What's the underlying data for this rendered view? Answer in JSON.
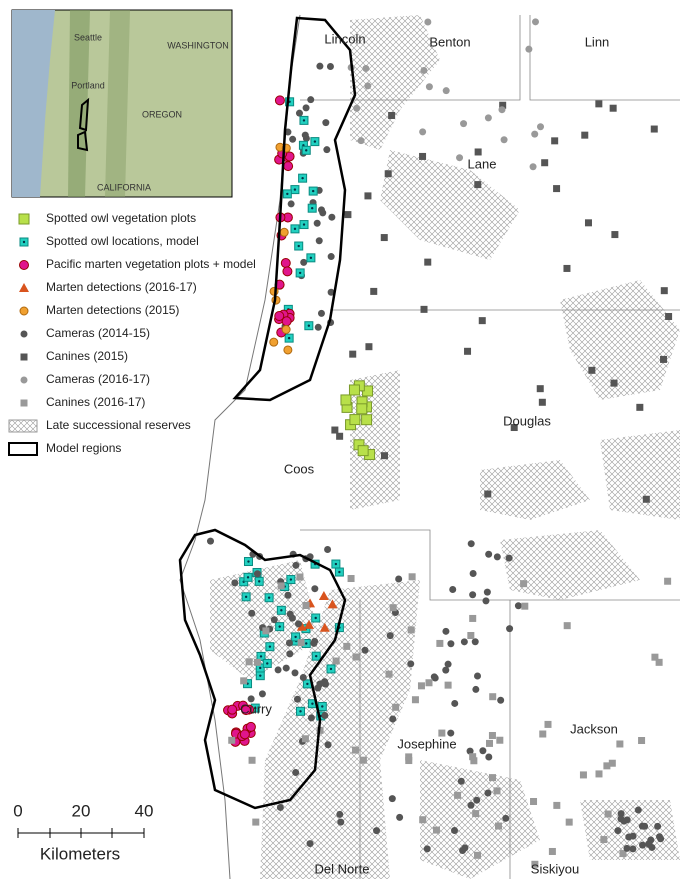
{
  "inset": {
    "labels": [
      "Seattle",
      "WASHINGTON",
      "Portland",
      "OREGON",
      "CALIFORNIA"
    ]
  },
  "legend": {
    "items": [
      "Spotted owl vegetation plots",
      "Spotted owl locations, model",
      "Pacific marten vegetation plots + model",
      "Marten detections (2016-17)",
      "Marten detections (2015)",
      "Cameras (2014-15)",
      "Canines (2015)",
      "Cameras (2016-17)",
      "Canines (2016-17)",
      "Late successional reserves",
      "Model regions"
    ]
  },
  "counties": [
    "Lincoln",
    "Benton",
    "Linn",
    "Lane",
    "Douglas",
    "Coos",
    "Curry",
    "Josephine",
    "Jackson",
    "Del Norte",
    "Siskiyou"
  ],
  "scale_bar": {
    "ticks": [
      0,
      20,
      40
    ],
    "unit": "Kilometers"
  }
}
